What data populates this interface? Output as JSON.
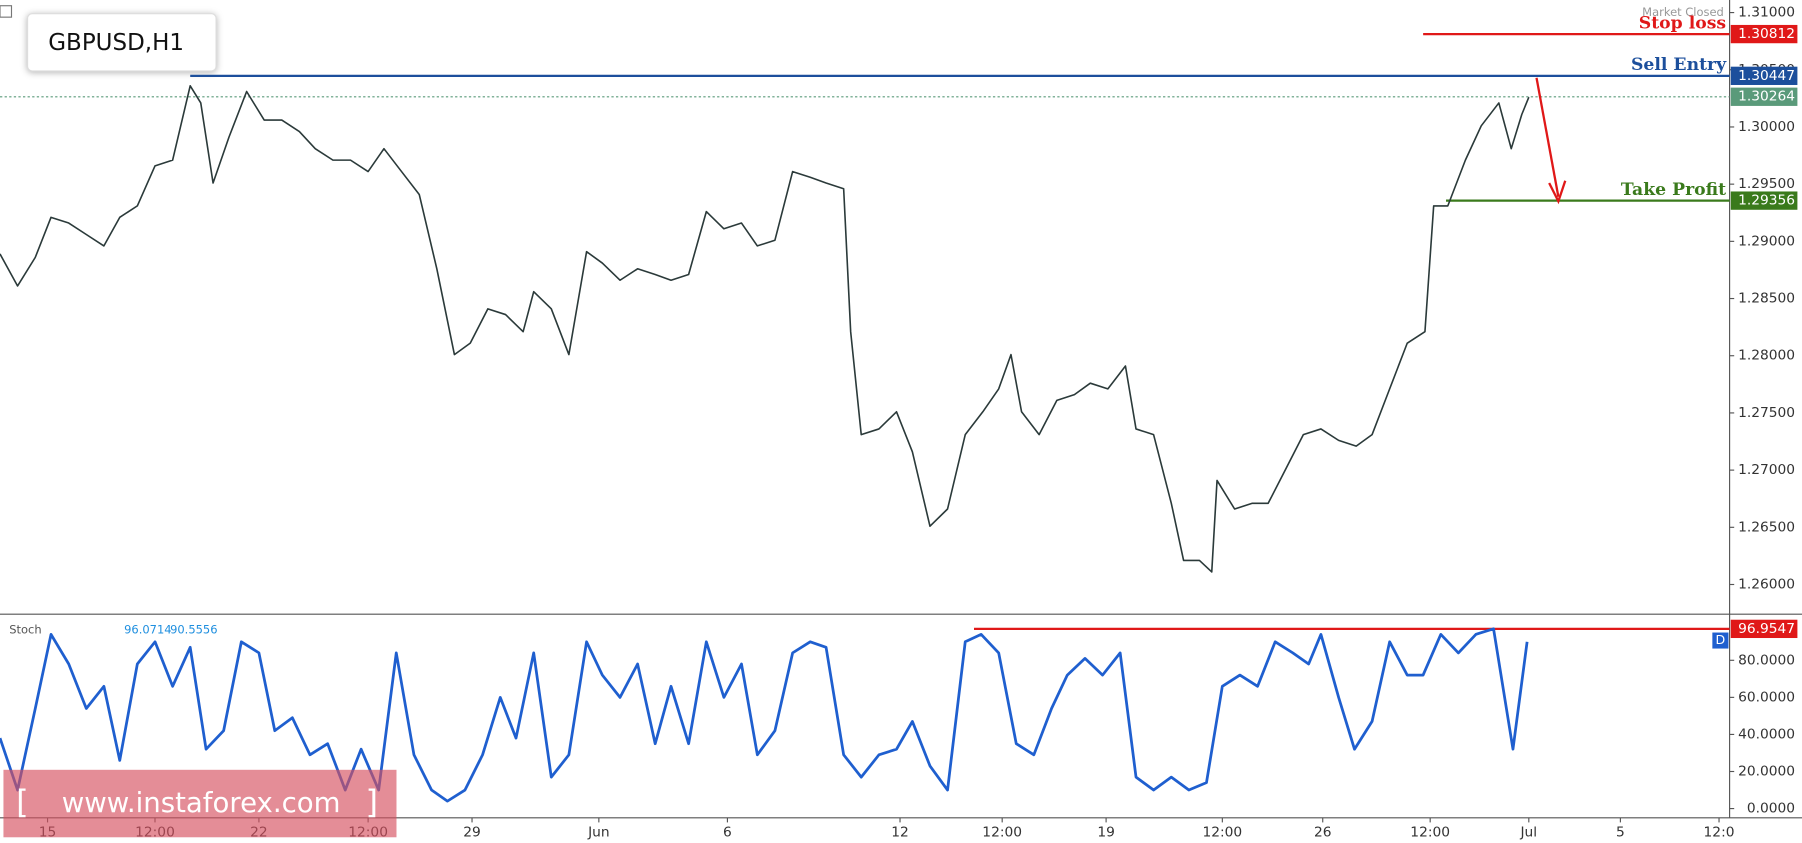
{
  "status": "Market Closed",
  "watermark": {
    "open": "[",
    "text": "www.instaforex.com",
    "close": "]"
  },
  "chart_data": [
    {
      "type": "line",
      "title": "GBPUSD,H1",
      "color": "#2b3a3a",
      "xlim": [
        0,
        982
      ],
      "ylim": [
        1.2574,
        1.3111
      ],
      "x": [
        0,
        10,
        20,
        29,
        39,
        49,
        59,
        68,
        78,
        88,
        98,
        108,
        114,
        121,
        130,
        140,
        150,
        160,
        170,
        179,
        189,
        199,
        209,
        218,
        228,
        238,
        248,
        258,
        267,
        277,
        287,
        297,
        303,
        313,
        323,
        333,
        342,
        352,
        362,
        372,
        381,
        391,
        401,
        411,
        421,
        430,
        440,
        450,
        460,
        469,
        479,
        483,
        489,
        499,
        509,
        518,
        528,
        538,
        548,
        558,
        567,
        574,
        580,
        590,
        600,
        610,
        619,
        629,
        639,
        645,
        655,
        665,
        672,
        681,
        688,
        691,
        701,
        711,
        720,
        730,
        740,
        750,
        760,
        770,
        779,
        789,
        799,
        809,
        814,
        822,
        832,
        841,
        851,
        858,
        864,
        868
      ],
      "series": [
        {
          "color": "#2b3a3a",
          "values": [
            1.2889,
            1.2861,
            1.2886,
            1.2921,
            1.2916,
            1.2906,
            1.2896,
            1.2921,
            1.2931,
            1.2966,
            1.2971,
            1.3036,
            1.3021,
            1.2951,
            1.2991,
            1.3031,
            1.3006,
            1.3006,
            1.2996,
            1.2981,
            1.2971,
            1.2971,
            1.2961,
            1.2981,
            1.2961,
            1.2941,
            1.2876,
            1.2801,
            1.2811,
            1.2841,
            1.2836,
            1.2821,
            1.2856,
            1.2841,
            1.2801,
            1.2891,
            1.2881,
            1.2866,
            1.2876,
            1.2871,
            1.2866,
            1.2871,
            1.2926,
            1.2911,
            1.2916,
            1.2896,
            1.2901,
            1.2961,
            1.2956,
            1.2951,
            1.2946,
            1.2821,
            1.2731,
            1.2736,
            1.2751,
            1.2716,
            1.2651,
            1.2666,
            1.2731,
            1.2751,
            1.2771,
            1.2801,
            1.2751,
            1.2731,
            1.2761,
            1.2766,
            1.2776,
            1.2771,
            1.2791,
            1.2736,
            1.2731,
            1.2671,
            1.2621,
            1.2621,
            1.2611,
            1.2691,
            1.2666,
            1.2671,
            1.2671,
            1.2701,
            1.2731,
            1.2736,
            1.2726,
            1.2721,
            1.2731,
            1.2771,
            1.2811,
            1.2821,
            1.2931,
            1.2931,
            1.2971,
            1.3001,
            1.3021,
            1.2981,
            1.3011,
            1.3026
          ]
        }
      ],
      "yticks": [
        {
          "value": 1.31,
          "label": "1.31000"
        },
        {
          "value": 1.305,
          "label": "1.30500"
        },
        {
          "value": 1.3,
          "label": "1.30000"
        },
        {
          "value": 1.295,
          "label": "1.29500"
        },
        {
          "value": 1.29,
          "label": "1.29000"
        },
        {
          "value": 1.285,
          "label": "1.28500"
        },
        {
          "value": 1.28,
          "label": "1.28000"
        },
        {
          "value": 1.275,
          "label": "1.27500"
        },
        {
          "value": 1.27,
          "label": "1.27000"
        },
        {
          "value": 1.265,
          "label": "1.26500"
        },
        {
          "value": 1.26,
          "label": "1.26000"
        }
      ],
      "xticks": [
        {
          "value": 27,
          "label": "15"
        },
        {
          "value": 88,
          "label": "12:00"
        },
        {
          "value": 147,
          "label": "22"
        },
        {
          "value": 209,
          "label": "12:00"
        },
        {
          "value": 268,
          "label": "29"
        },
        {
          "value": 340,
          "label": "Jun"
        },
        {
          "value": 413,
          "label": "6"
        },
        {
          "value": 511,
          "label": "12"
        },
        {
          "value": 569,
          "label": "12:00"
        },
        {
          "value": 628,
          "label": "19"
        },
        {
          "value": 694,
          "label": "12:00"
        },
        {
          "value": 751,
          "label": "26"
        },
        {
          "value": 812,
          "label": "12:00"
        },
        {
          "value": 868,
          "label": "Jul"
        },
        {
          "value": 920,
          "label": "5"
        },
        {
          "value": 976,
          "label": "12:0"
        }
      ],
      "levels": [
        {
          "name": "Stop loss",
          "value": 1.30812,
          "x_start": 808,
          "color": "#e01818"
        },
        {
          "name": "Sell Entry",
          "value": 1.30447,
          "x_start": 108,
          "color": "#1c4f9c"
        },
        {
          "value": 1.30264,
          "x_start": 0,
          "color": "#5a9a7a",
          "dotted": true
        },
        {
          "name": "Take Profit",
          "value": 1.29356,
          "x_start": 821,
          "color": "#3a7a1c"
        }
      ]
    },
    {
      "type": "line",
      "title": "Stoch",
      "readout": [
        96.0714,
        90.5556
      ],
      "xlim": [
        0,
        982
      ],
      "ylim": [
        -5,
        103
      ],
      "x": [
        0,
        10,
        20,
        29,
        39,
        49,
        59,
        68,
        78,
        88,
        98,
        108,
        117,
        127,
        137,
        147,
        156,
        166,
        176,
        186,
        196,
        205,
        215,
        225,
        235,
        245,
        254,
        264,
        274,
        284,
        293,
        303,
        313,
        323,
        333,
        342,
        352,
        362,
        372,
        381,
        391,
        401,
        411,
        421,
        430,
        440,
        450,
        460,
        469,
        479,
        489,
        499,
        509,
        518,
        528,
        538,
        548,
        557,
        567,
        577,
        587,
        597,
        606,
        616,
        626,
        636,
        645,
        655,
        665,
        675,
        685,
        694,
        704,
        714,
        724,
        734,
        743,
        750,
        760,
        769,
        779,
        789,
        799,
        808,
        818,
        828,
        838,
        848,
        859,
        867
      ],
      "series": [
        {
          "color": "#1f5fcf",
          "values": [
            38,
            10,
            54,
            94,
            78,
            54,
            66,
            26,
            78,
            90,
            66,
            87,
            32,
            42,
            90,
            84,
            42,
            49,
            29,
            35,
            10,
            32,
            10,
            84,
            29,
            10,
            4,
            10,
            29,
            60,
            38,
            84,
            17,
            29,
            90,
            72,
            60,
            78,
            35,
            66,
            35,
            90,
            60,
            78,
            29,
            42,
            84,
            90,
            87,
            29,
            17,
            29,
            32,
            47,
            23,
            10,
            90,
            94,
            84,
            35,
            29,
            54,
            72,
            81,
            72,
            84,
            17,
            10,
            17,
            10,
            14,
            66,
            72,
            66,
            90,
            84,
            78,
            94,
            60,
            32,
            47,
            90,
            72,
            72,
            94,
            84,
            94,
            97,
            32,
            90
          ]
        }
      ],
      "yticks": [
        {
          "value": 0,
          "label": "0.0000"
        },
        {
          "value": 20,
          "label": "20.0000"
        },
        {
          "value": 40,
          "label": "40.0000"
        },
        {
          "value": 60,
          "label": "60.0000"
        },
        {
          "value": 80,
          "label": "80.0000"
        }
      ],
      "levels": [
        {
          "value": 96.9547,
          "x_start": 553,
          "color": "#e01818"
        }
      ],
      "badge": "D"
    }
  ]
}
